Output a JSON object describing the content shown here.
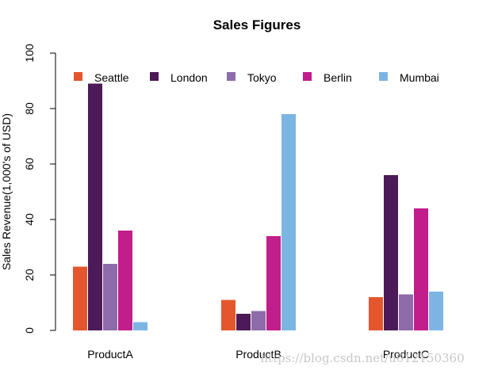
{
  "chart_data": {
    "type": "bar",
    "title": "Sales Figures",
    "xlabel": "",
    "ylabel": "Sales Revenue(1,000's of USD)",
    "ylim": [
      0,
      100
    ],
    "yticks": [
      0,
      20,
      40,
      60,
      80,
      100
    ],
    "categories": [
      "ProductA",
      "ProductB",
      "ProductC"
    ],
    "series": [
      {
        "name": "Seattle",
        "color": "#E4572E",
        "values": [
          23,
          11,
          12
        ]
      },
      {
        "name": "London",
        "color": "#4B1A57",
        "values": [
          89,
          6,
          56
        ]
      },
      {
        "name": "Tokyo",
        "color": "#8E6BAA",
        "values": [
          24,
          7,
          13
        ]
      },
      {
        "name": "Berlin",
        "color": "#C11D8B",
        "values": [
          36,
          34,
          44
        ]
      },
      {
        "name": "Mumbai",
        "color": "#7CB5E4",
        "values": [
          3,
          78,
          14
        ]
      }
    ],
    "legend_position": "top",
    "grid": false
  },
  "watermark": "https://blog.csdn.net/u012150360"
}
